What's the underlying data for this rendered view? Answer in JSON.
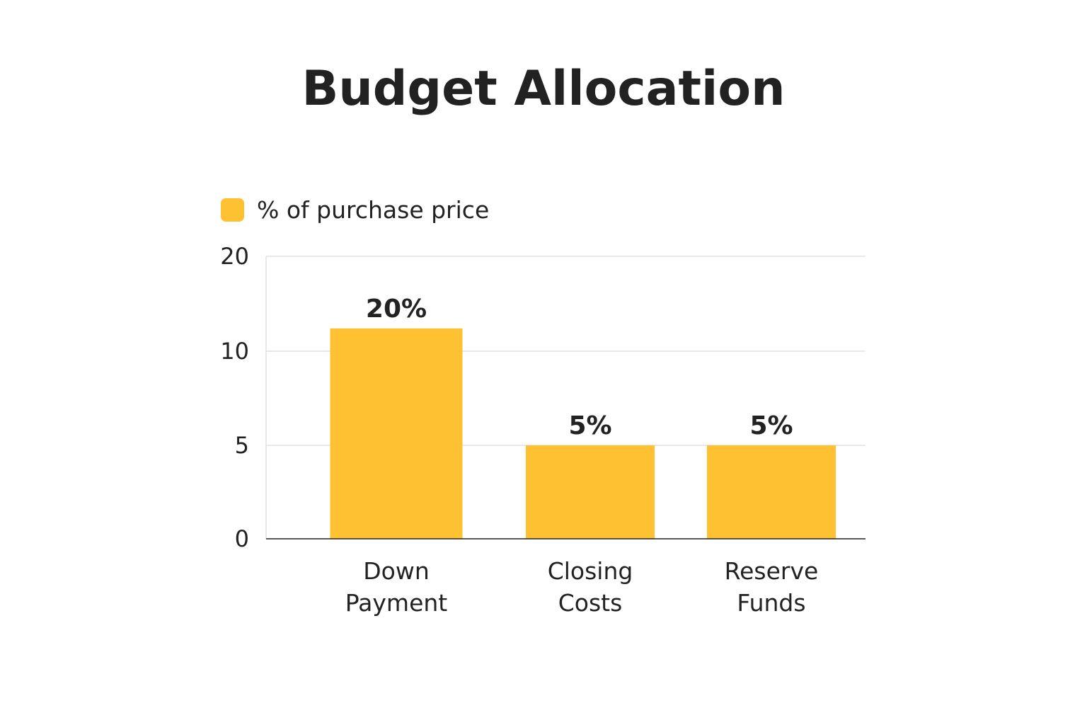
{
  "chart_data": {
    "type": "bar",
    "title": "Budget Allocation",
    "legend": {
      "label": "% of purchase price",
      "placement": "top-left"
    },
    "categories": [
      [
        "Down",
        "Payment"
      ],
      [
        "Closing",
        "Costs"
      ],
      [
        "Reserve",
        "Funds"
      ]
    ],
    "series": [
      {
        "name": "% of purchase price",
        "values": [
          20,
          5,
          5
        ],
        "data_labels": [
          "20%",
          "5%",
          "5%"
        ],
        "color": "#FDC131"
      }
    ],
    "y_ticks": [
      "0",
      "5",
      "10",
      "20"
    ],
    "y_tick_values": [
      0,
      5,
      10,
      20
    ],
    "ylim": [
      0,
      20
    ],
    "grid": true,
    "colors": {
      "bar": "#FDC131",
      "grid": "#dcdcdc",
      "axis": "#222222",
      "text": "#222222"
    }
  }
}
